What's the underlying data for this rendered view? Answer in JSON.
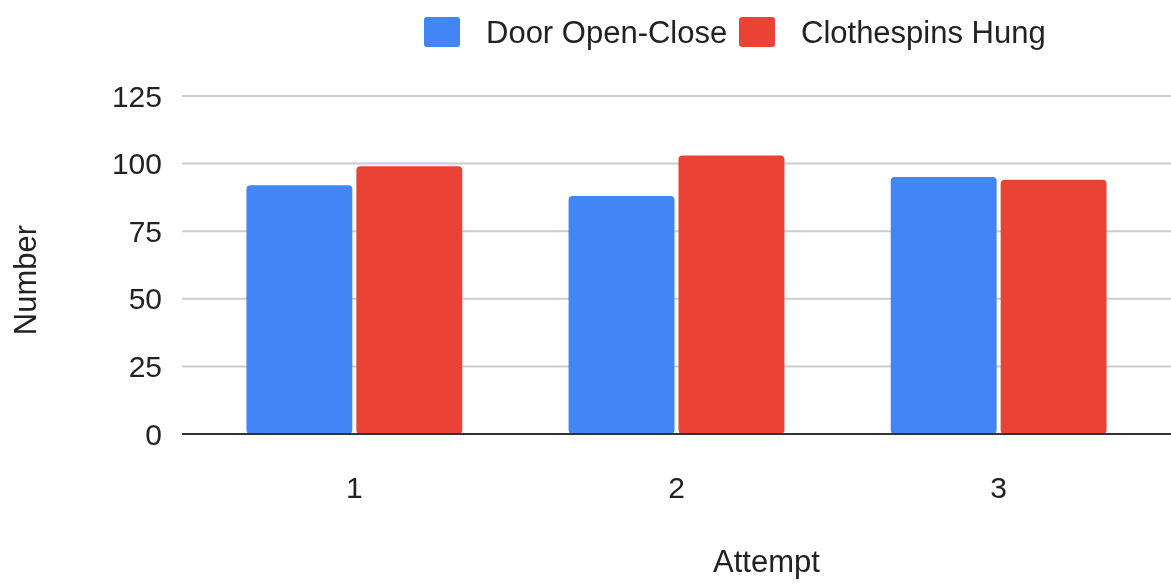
{
  "chart_data": {
    "type": "bar",
    "xlabel": "Attempt",
    "ylabel": "Number",
    "categories": [
      "1",
      "2",
      "3"
    ],
    "series": [
      {
        "name": "Door Open-Close",
        "color": "#4285f4",
        "values": [
          92,
          88,
          95
        ]
      },
      {
        "name": "Clothespins Hung",
        "color": "#ea4335",
        "values": [
          99,
          103,
          94
        ]
      }
    ],
    "ylim": [
      0,
      125
    ],
    "yticks": [
      0,
      25,
      50,
      75,
      100,
      125
    ],
    "grid": "y",
    "legend": "top"
  }
}
